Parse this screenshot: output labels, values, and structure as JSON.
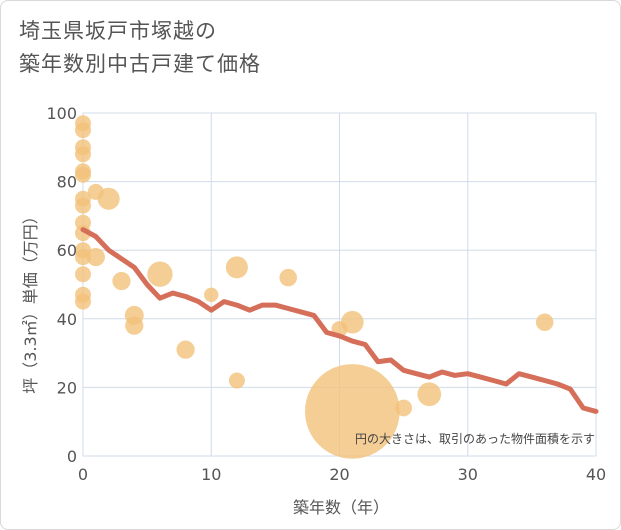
{
  "title_lines": [
    "埼玉県坂戸市塚越の",
    "築年数別中古戸建て価格"
  ],
  "chart_data": {
    "type": "scatter",
    "title": "埼玉県坂戸市塚越の築年数別中古戸建て価格",
    "xlabel": "築年数（年）",
    "ylabel": "坪（3.3㎡）単価（万円）",
    "xlim": [
      0,
      40
    ],
    "ylim": [
      0,
      100
    ],
    "x_ticks": [
      0,
      10,
      20,
      30,
      40
    ],
    "y_ticks": [
      0,
      20,
      40,
      60,
      80,
      100
    ],
    "grid": true,
    "note": "円の大きさは、取引のあった物件面積を示す",
    "bubble_color": "#f3c27a",
    "line_color": "#d56f5a",
    "series": [
      {
        "type": "scatter",
        "points": [
          {
            "x": 0,
            "y": 97,
            "size": 1
          },
          {
            "x": 0,
            "y": 95,
            "size": 1
          },
          {
            "x": 0,
            "y": 90,
            "size": 1
          },
          {
            "x": 0,
            "y": 88,
            "size": 1
          },
          {
            "x": 0,
            "y": 83,
            "size": 1
          },
          {
            "x": 0,
            "y": 82,
            "size": 1
          },
          {
            "x": 0,
            "y": 75,
            "size": 1
          },
          {
            "x": 0,
            "y": 73,
            "size": 1
          },
          {
            "x": 0,
            "y": 68,
            "size": 1
          },
          {
            "x": 0,
            "y": 65,
            "size": 1
          },
          {
            "x": 0,
            "y": 60,
            "size": 1
          },
          {
            "x": 0,
            "y": 58,
            "size": 1
          },
          {
            "x": 0,
            "y": 53,
            "size": 1
          },
          {
            "x": 0,
            "y": 47,
            "size": 1
          },
          {
            "x": 0,
            "y": 45,
            "size": 1
          },
          {
            "x": 1,
            "y": 77,
            "size": 1
          },
          {
            "x": 1,
            "y": 58,
            "size": 1.3
          },
          {
            "x": 2,
            "y": 75,
            "size": 1.9
          },
          {
            "x": 3,
            "y": 51,
            "size": 1.3
          },
          {
            "x": 4,
            "y": 41,
            "size": 1.4
          },
          {
            "x": 4,
            "y": 38,
            "size": 1.3
          },
          {
            "x": 6,
            "y": 53,
            "size": 2.5
          },
          {
            "x": 8,
            "y": 31,
            "size": 1.3
          },
          {
            "x": 10,
            "y": 47,
            "size": 0.8
          },
          {
            "x": 12,
            "y": 55,
            "size": 1.9
          },
          {
            "x": 12,
            "y": 22,
            "size": 1
          },
          {
            "x": 16,
            "y": 52,
            "size": 1.2
          },
          {
            "x": 20,
            "y": 37,
            "size": 1
          },
          {
            "x": 21,
            "y": 39,
            "size": 2
          },
          {
            "x": 21,
            "y": 13,
            "size": 35
          },
          {
            "x": 25,
            "y": 14,
            "size": 1.1
          },
          {
            "x": 27,
            "y": 18,
            "size": 2.2
          },
          {
            "x": 36,
            "y": 39,
            "size": 1.2
          }
        ]
      },
      {
        "type": "line",
        "x": [
          0,
          1,
          2,
          3,
          4,
          5,
          6,
          7,
          8,
          9,
          10,
          11,
          12,
          13,
          14,
          15,
          16,
          17,
          18,
          19,
          20,
          21,
          22,
          23,
          24,
          25,
          26,
          27,
          28,
          29,
          30,
          31,
          32,
          33,
          34,
          35,
          36,
          37,
          38,
          39,
          40
        ],
        "y": [
          66,
          64,
          60,
          57.5,
          55,
          50,
          46,
          47.5,
          46.5,
          45,
          42.5,
          45,
          44,
          42.5,
          44,
          44,
          43,
          42,
          41,
          36,
          35,
          33.5,
          32.5,
          27.5,
          28,
          25,
          24,
          23,
          24.5,
          23.5,
          24,
          23,
          22,
          21,
          24,
          23,
          22,
          21,
          19.5,
          14,
          13
        ]
      }
    ]
  }
}
